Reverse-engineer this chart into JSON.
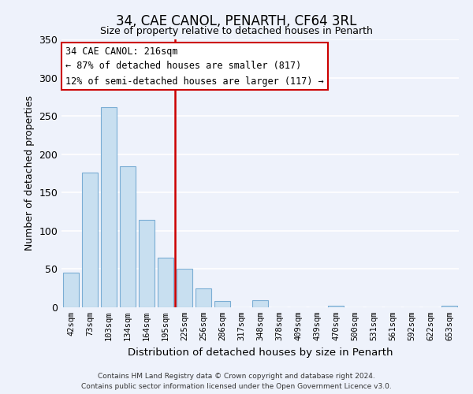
{
  "title": "34, CAE CANOL, PENARTH, CF64 3RL",
  "subtitle": "Size of property relative to detached houses in Penarth",
  "xlabel": "Distribution of detached houses by size in Penarth",
  "ylabel": "Number of detached properties",
  "bar_labels": [
    "42sqm",
    "73sqm",
    "103sqm",
    "134sqm",
    "164sqm",
    "195sqm",
    "225sqm",
    "256sqm",
    "286sqm",
    "317sqm",
    "348sqm",
    "378sqm",
    "409sqm",
    "439sqm",
    "470sqm",
    "500sqm",
    "531sqm",
    "561sqm",
    "592sqm",
    "622sqm",
    "653sqm"
  ],
  "bar_values": [
    45,
    176,
    261,
    184,
    114,
    65,
    50,
    25,
    8,
    0,
    9,
    0,
    0,
    0,
    2,
    0,
    0,
    0,
    0,
    0,
    2
  ],
  "bar_color": "#c8dff0",
  "bar_edge_color": "#7aadd4",
  "vline_color": "#cc0000",
  "annotation_text": "34 CAE CANOL: 216sqm\n← 87% of detached houses are smaller (817)\n12% of semi-detached houses are larger (117) →",
  "annotation_box_color": "#ffffff",
  "annotation_box_edge": "#cc0000",
  "ylim": [
    0,
    350
  ],
  "yticks": [
    0,
    50,
    100,
    150,
    200,
    250,
    300,
    350
  ],
  "footer_line1": "Contains HM Land Registry data © Crown copyright and database right 2024.",
  "footer_line2": "Contains public sector information licensed under the Open Government Licence v3.0.",
  "bg_color": "#eef2fb"
}
